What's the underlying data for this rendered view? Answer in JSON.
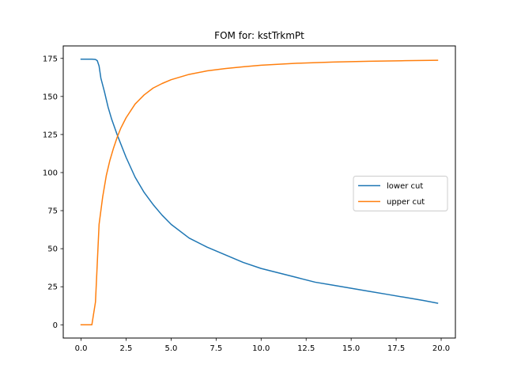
{
  "chart_data": {
    "type": "line",
    "title": "FOM for: kstTrkmPt",
    "xlabel": "",
    "ylabel": "",
    "xlim": [
      -0.99,
      20.79
    ],
    "ylim": [
      -8.7,
      183.2
    ],
    "xticks": [
      0.0,
      2.5,
      5.0,
      7.5,
      10.0,
      12.5,
      15.0,
      17.5,
      20.0
    ],
    "xtick_labels": [
      "0.0",
      "2.5",
      "5.0",
      "7.5",
      "10.0",
      "12.5",
      "15.0",
      "17.5",
      "20.0"
    ],
    "yticks": [
      0,
      25,
      50,
      75,
      100,
      125,
      150,
      175
    ],
    "ytick_labels": [
      "0",
      "25",
      "50",
      "75",
      "100",
      "125",
      "150",
      "175"
    ],
    "grid": false,
    "legend_position": "center-right",
    "series": [
      {
        "name": "lower cut",
        "color": "#1f77b4",
        "x": [
          0.0,
          0.4,
          0.6,
          0.8,
          0.9,
          1.0,
          1.1,
          1.3,
          1.5,
          1.7,
          2.0,
          2.3,
          2.5,
          3.0,
          3.5,
          4.0,
          4.5,
          5.0,
          6.0,
          7.0,
          8.0,
          9.0,
          10.0,
          11.0,
          12.0,
          13.0,
          14.0,
          15.0,
          16.0,
          17.0,
          18.0,
          19.0,
          19.8
        ],
        "y": [
          174.5,
          174.5,
          174.5,
          174.3,
          173.5,
          170.0,
          162.0,
          153.0,
          143.0,
          135.0,
          125.0,
          116.0,
          110.0,
          97.0,
          87.0,
          79.0,
          72.0,
          66.0,
          57.0,
          51.0,
          46.0,
          41.0,
          37.0,
          34.0,
          31.0,
          28.0,
          26.0,
          24.0,
          22.0,
          20.0,
          18.0,
          16.0,
          14.2
        ]
      },
      {
        "name": "upper cut",
        "color": "#ff7f0e",
        "x": [
          0.0,
          0.3,
          0.6,
          0.8,
          1.0,
          1.2,
          1.4,
          1.6,
          1.8,
          2.0,
          2.2,
          2.5,
          3.0,
          3.5,
          4.0,
          4.5,
          5.0,
          6.0,
          7.0,
          8.0,
          9.0,
          10.0,
          12.0,
          14.0,
          16.0,
          18.0,
          19.8
        ],
        "y": [
          0.0,
          0.0,
          0.0,
          15.0,
          66.0,
          84.0,
          98.0,
          108.0,
          116.0,
          123.0,
          129.0,
          136.0,
          145.0,
          151.0,
          155.5,
          158.5,
          161.0,
          164.5,
          166.8,
          168.3,
          169.5,
          170.5,
          171.8,
          172.6,
          173.1,
          173.5,
          173.8
        ]
      }
    ]
  }
}
